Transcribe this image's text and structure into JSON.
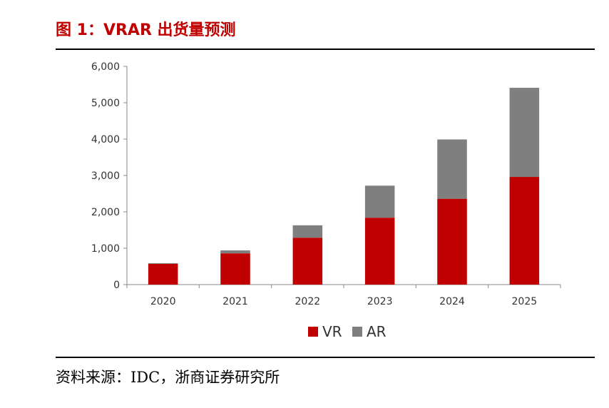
{
  "figure": {
    "title": "图 1：VRAR 出货量预测",
    "source": "资料来源：IDC，浙商证券研究所"
  },
  "chart_data": {
    "type": "bar",
    "stacked": true,
    "categories": [
      "2020",
      "2021",
      "2022",
      "2023",
      "2024",
      "2025"
    ],
    "series": [
      {
        "name": "VR",
        "color": "#c00000",
        "values": [
          570,
          860,
          1290,
          1840,
          2360,
          2960
        ]
      },
      {
        "name": "AR",
        "color": "#7f7f7f",
        "values": [
          20,
          80,
          340,
          880,
          1630,
          2450
        ]
      }
    ],
    "ylim": [
      0,
      6000
    ],
    "yticks": [
      0,
      1000,
      2000,
      3000,
      4000,
      5000,
      6000
    ],
    "ytick_labels": [
      "0",
      "1,000",
      "2,000",
      "3,000",
      "4,000",
      "5,000",
      "6,000"
    ],
    "legend_position": "bottom-center",
    "xlabel": "",
    "ylabel": "",
    "grid": false
  }
}
